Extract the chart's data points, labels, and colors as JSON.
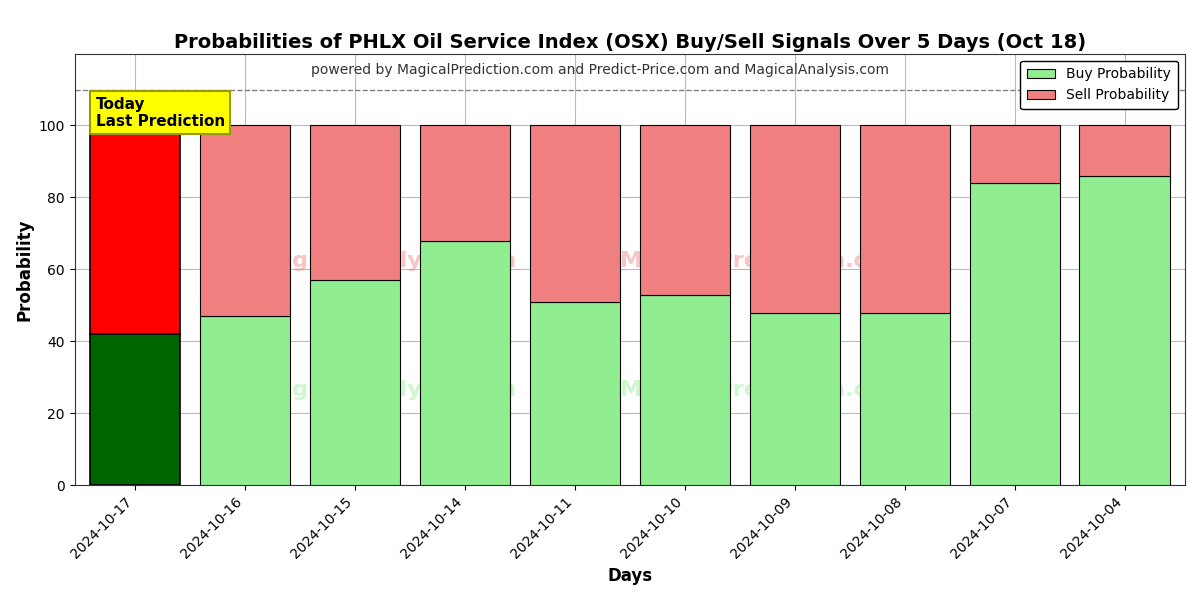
{
  "title": "Probabilities of PHLX Oil Service Index (OSX) Buy/Sell Signals Over 5 Days (Oct 18)",
  "subtitle": "powered by MagicalPrediction.com and Predict-Price.com and MagicalAnalysis.com",
  "xlabel": "Days",
  "ylabel": "Probability",
  "dates": [
    "2024-10-17",
    "2024-10-16",
    "2024-10-15",
    "2024-10-14",
    "2024-10-11",
    "2024-10-10",
    "2024-10-09",
    "2024-10-08",
    "2024-10-07",
    "2024-10-04"
  ],
  "buy_values": [
    42,
    47,
    57,
    68,
    51,
    53,
    48,
    48,
    84,
    86
  ],
  "sell_values": [
    58,
    53,
    43,
    32,
    49,
    47,
    52,
    52,
    16,
    14
  ],
  "today_bar_buy_color": "#006400",
  "today_bar_sell_color": "#ff0000",
  "normal_bar_buy_color": "#90ee90",
  "normal_bar_sell_color": "#f08080",
  "bar_edge_color": "#000000",
  "ylim_max": 120,
  "yticks": [
    0,
    20,
    40,
    60,
    80,
    100
  ],
  "dashed_line_y": 110,
  "legend_buy_label": "Buy Probability",
  "legend_sell_label": "Sell Probability",
  "today_label": "Today\nLast Prediction",
  "today_label_bg": "#ffff00",
  "today_label_border": "#999900",
  "title_fontsize": 14,
  "subtitle_fontsize": 10,
  "axis_label_fontsize": 12,
  "tick_fontsize": 10,
  "legend_fontsize": 10,
  "background_color": "#ffffff",
  "grid_color": "#bbbbbb",
  "bar_width": 0.82
}
